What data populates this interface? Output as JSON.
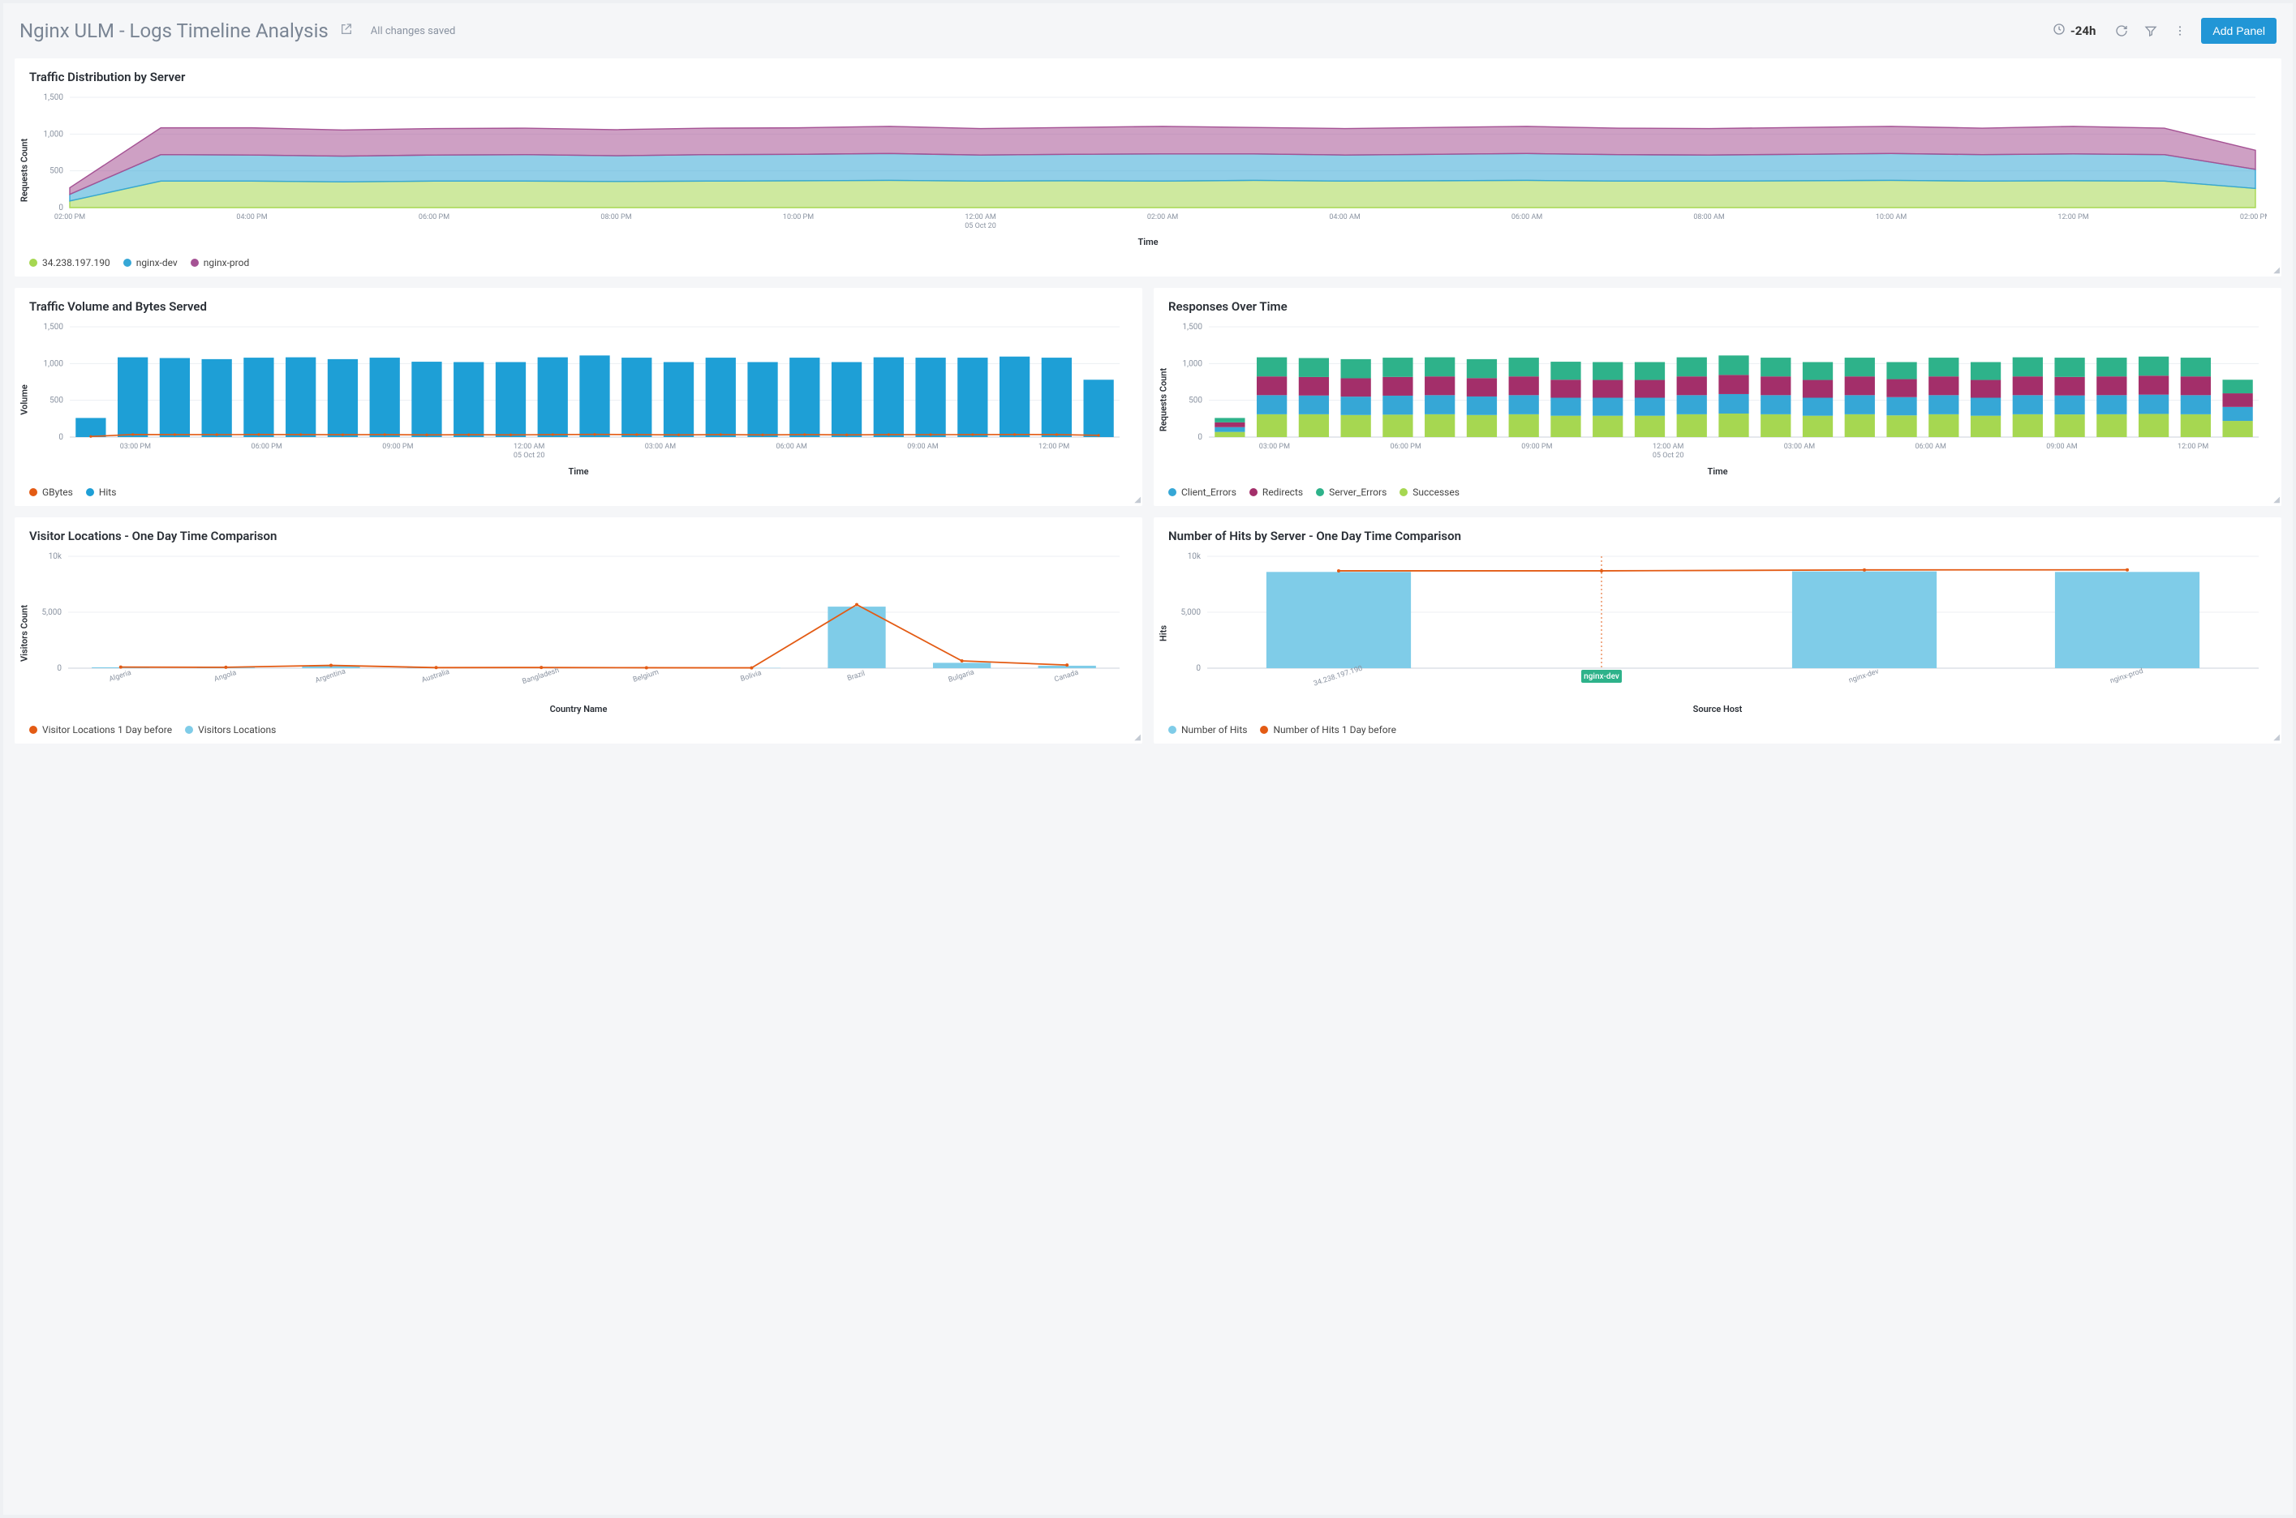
{
  "header": {
    "title": "Nginx ULM - Logs Timeline Analysis",
    "save_status": "All changes saved",
    "time_range": "-24h",
    "add_panel_label": "Add Panel"
  },
  "colors": {
    "page_bg": "#f5f6f8",
    "panel_bg": "#ffffff",
    "text_muted": "#8a93a1",
    "grid_line": "#eceff3",
    "baseline": "#cbd2db",
    "primary_btn": "#2196d6"
  },
  "panels": {
    "traffic_distribution": {
      "title": "Traffic Distribution by Server",
      "type": "area-stacked",
      "y_label": "Requests Count",
      "x_label": "Time",
      "ylim": [
        0,
        1500
      ],
      "ytick_step": 500,
      "x_ticks": [
        "02:00 PM",
        "04:00 PM",
        "06:00 PM",
        "08:00 PM",
        "10:00 PM",
        "12:00 AM",
        "02:00 AM",
        "04:00 AM",
        "06:00 AM",
        "08:00 AM",
        "10:00 AM",
        "12:00 PM",
        "02:00 PM"
      ],
      "x_sublabel_index": 5,
      "x_sublabel": "05 Oct 20",
      "series": [
        {
          "name": "34.238.197.190",
          "color": "#a6d751",
          "values": [
            90,
            360,
            360,
            350,
            360,
            360,
            355,
            360,
            365,
            370,
            360,
            365,
            360,
            370,
            360,
            365,
            370,
            360,
            360,
            365,
            370,
            360,
            365,
            360,
            260
          ]
        },
        {
          "name": "nginx-dev",
          "color": "#36a7d6",
          "values": [
            90,
            360,
            355,
            350,
            355,
            360,
            350,
            360,
            360,
            365,
            355,
            360,
            370,
            360,
            355,
            360,
            365,
            360,
            355,
            360,
            365,
            360,
            365,
            360,
            260
          ]
        },
        {
          "name": "nginx-prod",
          "color": "#a55294",
          "values": [
            90,
            365,
            370,
            355,
            360,
            360,
            355,
            360,
            360,
            370,
            360,
            365,
            375,
            360,
            360,
            365,
            370,
            360,
            360,
            365,
            370,
            360,
            375,
            360,
            260
          ]
        }
      ],
      "area_opacity": 0.55
    },
    "traffic_volume": {
      "title": "Traffic Volume and Bytes Served",
      "type": "bar-line",
      "y_label": "Volume",
      "x_label": "Time",
      "ylim": [
        0,
        1500
      ],
      "ytick_step": 500,
      "x_ticks": [
        "03:00 PM",
        "06:00 PM",
        "09:00 PM",
        "12:00 AM",
        "03:00 AM",
        "06:00 AM",
        "09:00 AM",
        "12:00 PM"
      ],
      "x_sublabel_index": 3,
      "x_sublabel": "05 Oct 20",
      "bars": {
        "name": "Hits",
        "color": "#1e9fd6",
        "values": [
          260,
          1085,
          1075,
          1060,
          1080,
          1085,
          1060,
          1080,
          1025,
          1020,
          1020,
          1085,
          1110,
          1080,
          1020,
          1080,
          1020,
          1080,
          1020,
          1085,
          1080,
          1080,
          1095,
          1080,
          780
        ]
      },
      "line": {
        "name": "GBytes",
        "color": "#e35b14",
        "values": [
          8,
          35,
          34,
          33,
          35,
          34,
          32,
          34,
          30,
          32,
          30,
          34,
          36,
          34,
          30,
          34,
          30,
          34,
          30,
          34,
          33,
          34,
          35,
          34,
          24
        ]
      },
      "legend": [
        {
          "label": "GBytes",
          "color": "#e35b14"
        },
        {
          "label": "Hits",
          "color": "#1e9fd6"
        }
      ]
    },
    "responses_over_time": {
      "title": "Responses Over Time",
      "type": "bar-stacked",
      "y_label": "Requests Count",
      "x_label": "Time",
      "ylim": [
        0,
        1500
      ],
      "ytick_step": 500,
      "x_ticks": [
        "03:00 PM",
        "06:00 PM",
        "09:00 PM",
        "12:00 AM",
        "03:00 AM",
        "06:00 AM",
        "09:00 AM",
        "12:00 PM"
      ],
      "x_sublabel_index": 3,
      "x_sublabel": "05 Oct 20",
      "series": [
        {
          "name": "Successes",
          "color": "#a6d751",
          "values": [
            70,
            310,
            310,
            300,
            305,
            310,
            300,
            310,
            290,
            290,
            290,
            310,
            320,
            310,
            290,
            310,
            295,
            310,
            290,
            310,
            308,
            310,
            315,
            310,
            220
          ]
        },
        {
          "name": "Client_Errors",
          "color": "#36a7d6",
          "values": [
            65,
            260,
            255,
            250,
            258,
            260,
            252,
            260,
            245,
            245,
            245,
            260,
            265,
            260,
            245,
            260,
            248,
            260,
            245,
            260,
            258,
            260,
            262,
            260,
            190
          ]
        },
        {
          "name": "Redirects",
          "color": "#a32f6a",
          "values": [
            65,
            255,
            252,
            250,
            255,
            255,
            250,
            255,
            245,
            242,
            242,
            255,
            260,
            255,
            242,
            255,
            245,
            255,
            242,
            255,
            252,
            255,
            258,
            255,
            185
          ]
        },
        {
          "name": "Server_Errors",
          "color": "#2eb28a",
          "values": [
            60,
            260,
            258,
            260,
            262,
            260,
            258,
            255,
            245,
            243,
            243,
            260,
            265,
            255,
            243,
            255,
            232,
            255,
            243,
            260,
            262,
            255,
            260,
            255,
            185
          ]
        }
      ],
      "legend": [
        {
          "label": "Client_Errors",
          "color": "#36a7d6"
        },
        {
          "label": "Redirects",
          "color": "#a32f6a"
        },
        {
          "label": "Server_Errors",
          "color": "#2eb28a"
        },
        {
          "label": "Successes",
          "color": "#a6d751"
        }
      ]
    },
    "visitor_locations": {
      "title": "Visitor Locations - One Day Time Comparison",
      "type": "bar-line-categorical",
      "y_label": "Visitors Count",
      "x_label": "Country Name",
      "ylim": [
        0,
        10000
      ],
      "yticks": [
        0,
        5000,
        10000
      ],
      "ytick_labels": [
        "0",
        "5,000",
        "10k"
      ],
      "categories": [
        "Algeria",
        "Angola",
        "Argentina",
        "Australia",
        "Bangladesh",
        "Belgium",
        "Bolivia",
        "Brazil",
        "Bulgaria",
        "Canada"
      ],
      "bars": {
        "name": "Visitors Locations",
        "color": "#7fcce8",
        "values": [
          80,
          60,
          180,
          30,
          40,
          30,
          25,
          5500,
          480,
          220
        ]
      },
      "line": {
        "name": "Visitor Locations 1 Day before",
        "color": "#e35b14",
        "values": [
          100,
          80,
          250,
          50,
          60,
          40,
          30,
          5680,
          650,
          280
        ]
      },
      "legend": [
        {
          "label": "Visitor Locations 1 Day before",
          "color": "#e35b14"
        },
        {
          "label": "Visitors Locations",
          "color": "#7fcce8"
        }
      ]
    },
    "hits_by_server": {
      "title": "Number of Hits by Server - One Day Time Comparison",
      "type": "bar-line-categorical",
      "y_label": "Hits",
      "x_label": "Source Host",
      "ylim": [
        0,
        10000
      ],
      "yticks": [
        0,
        5000,
        10000
      ],
      "ytick_labels": [
        "0",
        "5,000",
        "10k"
      ],
      "categories": [
        "34.238.197.190",
        "nginx-dev",
        "nginx-dev",
        "nginx-prod"
      ],
      "highlight_index": 1,
      "highlight_label": "nginx-dev",
      "bars": {
        "name": "Number of Hits",
        "color": "#7fcce8",
        "values": [
          8600,
          0,
          8650,
          8600
        ]
      },
      "line": {
        "name": "Number of Hits 1 Day before",
        "color": "#e35b14",
        "values": [
          8700,
          8700,
          8780,
          8790
        ]
      },
      "legend": [
        {
          "label": "Number of Hits",
          "color": "#7fcce8"
        },
        {
          "label": "Number of Hits 1 Day before",
          "color": "#e35b14"
        }
      ]
    }
  }
}
